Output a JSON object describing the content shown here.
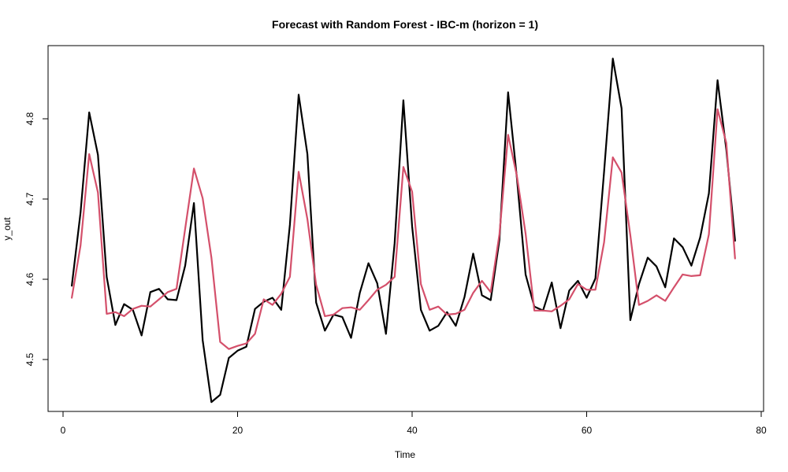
{
  "chart_data": {
    "type": "line",
    "title": "Forecast with Random Forest - IBC-m (horizon = 1)",
    "xlabel": "Time",
    "ylabel": "y_out",
    "xlim": [
      0,
      80
    ],
    "ylim": [
      4.445,
      4.88
    ],
    "x_ticks": [
      0,
      20,
      40,
      60,
      80
    ],
    "y_ticks": [
      4.5,
      4.6,
      4.7,
      4.8
    ],
    "grid": false,
    "legend": "none",
    "x": [
      1,
      2,
      3,
      4,
      5,
      6,
      7,
      8,
      9,
      10,
      11,
      12,
      13,
      14,
      15,
      16,
      17,
      18,
      19,
      20,
      21,
      22,
      23,
      24,
      25,
      26,
      27,
      28,
      29,
      30,
      31,
      32,
      33,
      34,
      35,
      36,
      37,
      38,
      39,
      40,
      41,
      42,
      43,
      44,
      45,
      46,
      47,
      48,
      49,
      50,
      51,
      52,
      53,
      54,
      55,
      56,
      57,
      58,
      59,
      60,
      61,
      62,
      63,
      64,
      65,
      66,
      67,
      68,
      69,
      70,
      71,
      72,
      73,
      74,
      75,
      76,
      77
    ],
    "series": [
      {
        "color": "#000000",
        "values": [
          4.592,
          4.683,
          4.808,
          4.755,
          4.603,
          4.543,
          4.569,
          4.562,
          4.53,
          4.584,
          4.588,
          4.575,
          4.574,
          4.617,
          4.695,
          4.524,
          4.447,
          4.456,
          4.502,
          4.511,
          4.516,
          4.563,
          4.572,
          4.577,
          4.562,
          4.668,
          4.83,
          4.756,
          4.571,
          4.536,
          4.556,
          4.553,
          4.527,
          4.583,
          4.62,
          4.595,
          4.532,
          4.645,
          4.823,
          4.666,
          4.562,
          4.536,
          4.542,
          4.559,
          4.542,
          4.578,
          4.632,
          4.58,
          4.574,
          4.649,
          4.833,
          4.727,
          4.606,
          4.566,
          4.561,
          4.596,
          4.539,
          4.586,
          4.598,
          4.577,
          4.601,
          4.734,
          4.875,
          4.813,
          4.549,
          4.594,
          4.627,
          4.616,
          4.59,
          4.651,
          4.64,
          4.617,
          4.652,
          4.707,
          4.848,
          4.762,
          4.648
        ]
      },
      {
        "color": "#d4506b",
        "values": [
          4.577,
          4.642,
          4.756,
          4.708,
          4.557,
          4.559,
          4.554,
          4.563,
          4.567,
          4.566,
          4.575,
          4.584,
          4.588,
          4.663,
          4.738,
          4.701,
          4.627,
          4.522,
          4.513,
          4.517,
          4.52,
          4.532,
          4.575,
          4.568,
          4.582,
          4.603,
          4.734,
          4.675,
          4.593,
          4.554,
          4.556,
          4.564,
          4.565,
          4.562,
          4.574,
          4.587,
          4.593,
          4.603,
          4.74,
          4.709,
          4.594,
          4.562,
          4.566,
          4.556,
          4.557,
          4.562,
          4.583,
          4.598,
          4.584,
          4.656,
          4.78,
          4.729,
          4.657,
          4.561,
          4.561,
          4.56,
          4.567,
          4.575,
          4.594,
          4.587,
          4.587,
          4.646,
          4.752,
          4.733,
          4.655,
          4.568,
          4.573,
          4.58,
          4.573,
          4.59,
          4.606,
          4.604,
          4.605,
          4.656,
          4.812,
          4.77,
          4.626
        ]
      }
    ]
  }
}
